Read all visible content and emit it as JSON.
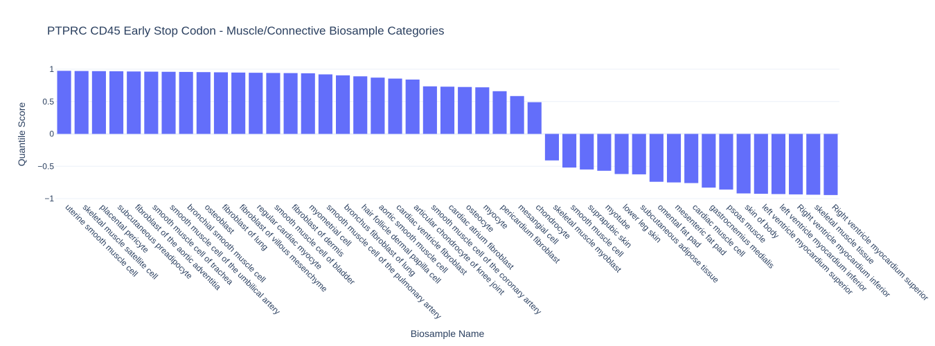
{
  "chart_data": {
    "type": "bar",
    "title": "PTPRC CD45 Early Stop Codon - Muscle/Connective Biosample Categories",
    "xlabel": "Biosample Name",
    "ylabel": "Quantile Score",
    "ylim": [
      -1,
      1
    ],
    "yticks": [
      1,
      0.5,
      0,
      -0.5,
      -1
    ],
    "ytick_labels": [
      "1",
      "0.5",
      "0",
      "−0.5",
      "−1"
    ],
    "grid": true,
    "bar_color": "#636efa",
    "categories": [
      "uterine smooth muscle cell",
      "skeletal muscle satellite cell",
      "placental pericyte",
      "subcutaneous preadipocyte",
      "fibroblast of the aortic adventitia",
      "smooth muscle cell of trachea",
      "smooth muscle cell of the umbilical artery",
      "bronchial smooth muscle cell",
      "osteoblast",
      "fibroblast of lung",
      "fibroblast of villous mesenchyme",
      "regular cardiac myocyte",
      "smooth muscle cell of bladder",
      "fibroblast of dermis",
      "myometrial cell",
      "smooth muscle cell of the pulmonary artery",
      "bronchus fibroblast of lung",
      "hair follicle dermal papilla cell",
      "aortic smooth muscle cell",
      "cardiac ventricle fibroblast",
      "articular chondrocyte of knee joint",
      "smooth muscle cell of the coronary artery",
      "cardiac atrium fibroblast",
      "osteocyte",
      "myocyte",
      "pericardium fibroblast",
      "mesangial cell",
      "chondrocyte",
      "skeletal muscle myoblast",
      "smooth muscle cell",
      "suprapubic skin",
      "myotube",
      "lower leg skin",
      "subcutaneous adipose tissue",
      "omental fat pad",
      "mesenteric fat pad",
      "cardiac muscle cell",
      "gastrocnemius medialis",
      "psoas muscle",
      "skin of body",
      "left ventricle myocardium superior",
      "left ventricle myocardium inferior",
      "Right ventricle myocardium inferior",
      "skeletal muscle tissue",
      "Right ventricle myocardium superior"
    ],
    "values": [
      0.975,
      0.972,
      0.97,
      0.968,
      0.965,
      0.962,
      0.96,
      0.958,
      0.955,
      0.952,
      0.948,
      0.945,
      0.942,
      0.94,
      0.937,
      0.92,
      0.905,
      0.89,
      0.87,
      0.855,
      0.84,
      0.735,
      0.73,
      0.725,
      0.72,
      0.66,
      0.585,
      0.49,
      -0.41,
      -0.52,
      -0.55,
      -0.57,
      -0.62,
      -0.625,
      -0.74,
      -0.75,
      -0.76,
      -0.83,
      -0.86,
      -0.92,
      -0.925,
      -0.93,
      -0.935,
      -0.94,
      -0.945
    ]
  }
}
